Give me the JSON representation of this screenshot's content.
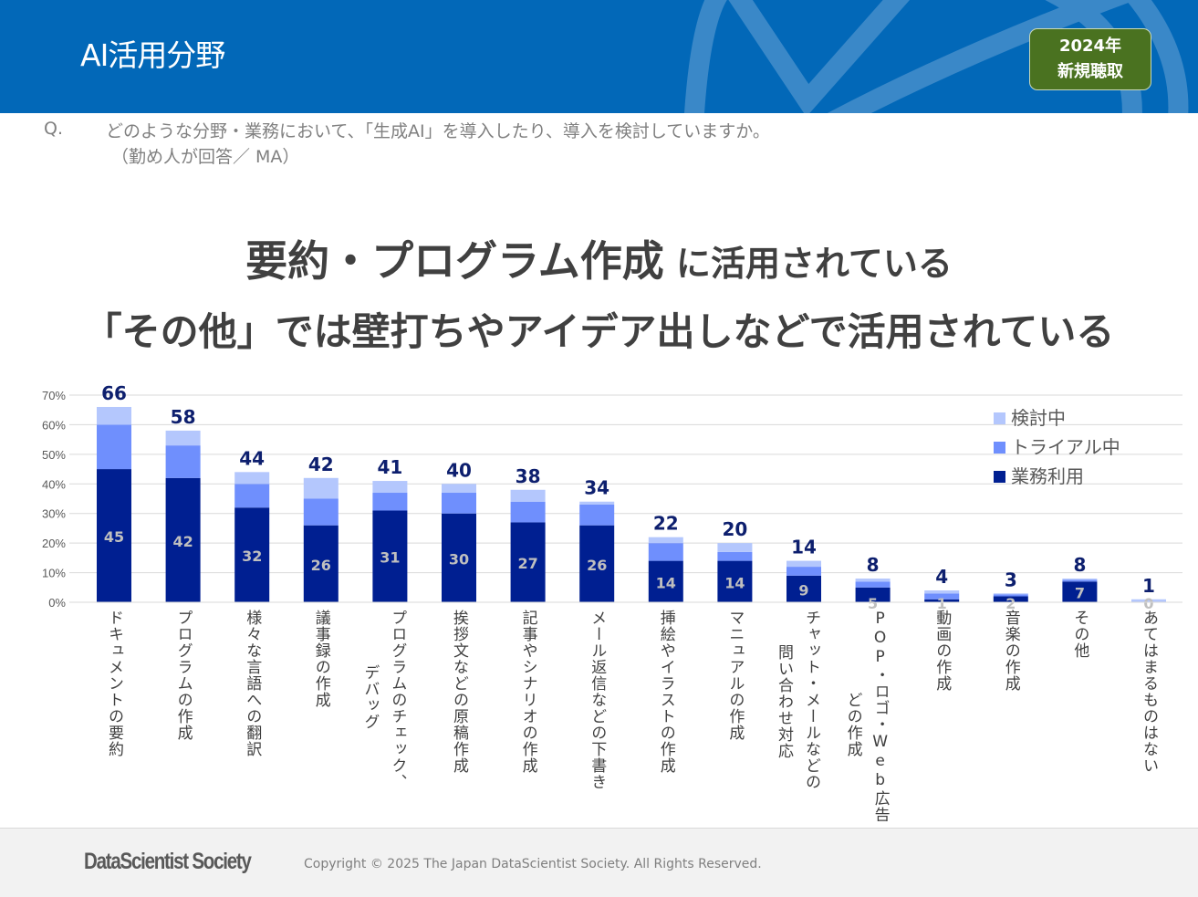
{
  "header": {
    "title": "AI活用分野",
    "badge_line1": "2024年",
    "badge_line2": "新規聴取",
    "colors": {
      "background": "#0268b8",
      "badge": "#4a7220"
    }
  },
  "question": {
    "prefix": "Q.",
    "text": "どのような分野・業務において、「生成AI」を導入したり、導入を検討していますか。",
    "sub": "（勤め人が回答／ MA）"
  },
  "headline": {
    "line1_emphasis": "要約・プログラム作成",
    "line1_rest": " に活用されている",
    "line2": "「その他」では壁打ちやアイデア出しなどで活用されている"
  },
  "legend": [
    {
      "label": "検討中",
      "color": "#b4c7fd"
    },
    {
      "label": "トライアル中",
      "color": "#6f8ffd"
    },
    {
      "label": "業務利用",
      "color": "#001f91"
    }
  ],
  "chart_data": {
    "type": "bar",
    "stacked": true,
    "title": "",
    "xlabel": "",
    "ylabel": "",
    "ylim": [
      0,
      70
    ],
    "yticks": [
      "0%",
      "10%",
      "20%",
      "30%",
      "40%",
      "50%",
      "60%",
      "70%"
    ],
    "grid": true,
    "legend_position": "top-right",
    "categories": [
      "ドキュメントの要約",
      "プログラムの作成",
      "様々な言語への翻訳",
      "議事録の作成",
      "プログラムのチェック、デバッグ",
      "挨拶文などの原稿作成",
      "記事やシナリオの作成",
      "メール返信などの下書き",
      "挿絵やイラストの作成",
      "マニュアルの作成",
      "チャット・メールなどの問い合わせ対応",
      "POP・ロゴ・Web広告などの作成",
      "動画の作成",
      "音楽の作成",
      "その他",
      "あてはまるものはない"
    ],
    "category_lines": [
      [
        "ドキュメントの要約"
      ],
      [
        "プログラムの作成"
      ],
      [
        "様々な言語への翻訳"
      ],
      [
        "議事録の作成"
      ],
      [
        "プログラムのチェック、",
        "デバッグ"
      ],
      [
        "挨拶文などの原稿作成"
      ],
      [
        "記事やシナリオの作成"
      ],
      [
        "メール返信などの下書き"
      ],
      [
        "挿絵やイラストの作成"
      ],
      [
        "マニュアルの作成"
      ],
      [
        "チャット・メールなどの",
        "問い合わせ対応"
      ],
      [
        "POP・ロゴ・Web広告な",
        "どの作成"
      ],
      [
        "動画の作成"
      ],
      [
        "音楽の作成"
      ],
      [
        "その他"
      ],
      [
        "あてはまるものはない"
      ]
    ],
    "series": [
      {
        "name": "業務利用",
        "color": "#001f91",
        "values": [
          45,
          42,
          32,
          26,
          31,
          30,
          27,
          26,
          14,
          14,
          9,
          5,
          1,
          2,
          7,
          0
        ]
      },
      {
        "name": "トライアル中",
        "color": "#6f8ffd",
        "values": [
          15,
          11,
          8,
          9,
          6,
          7,
          7,
          7,
          6,
          3,
          3,
          2,
          2,
          0.7,
          0.6,
          0
        ]
      },
      {
        "name": "検討中",
        "color": "#b4c7fd",
        "values": [
          6,
          5,
          4,
          7,
          4,
          3,
          4,
          1,
          2,
          3,
          2,
          1,
          1,
          0.3,
          0.4,
          1
        ]
      }
    ],
    "totals": [
      66,
      58,
      44,
      42,
      41,
      40,
      38,
      34,
      22,
      20,
      14,
      8,
      4,
      3,
      8,
      1
    ],
    "inner_labels": [
      45,
      42,
      32,
      26,
      31,
      30,
      27,
      26,
      14,
      14,
      9,
      5,
      1,
      2,
      7,
      0
    ]
  },
  "footer": {
    "logo": "DataScientist Society",
    "copyright": "Copyright © 2025 The Japan DataScientist Society. All Rights Reserved."
  }
}
